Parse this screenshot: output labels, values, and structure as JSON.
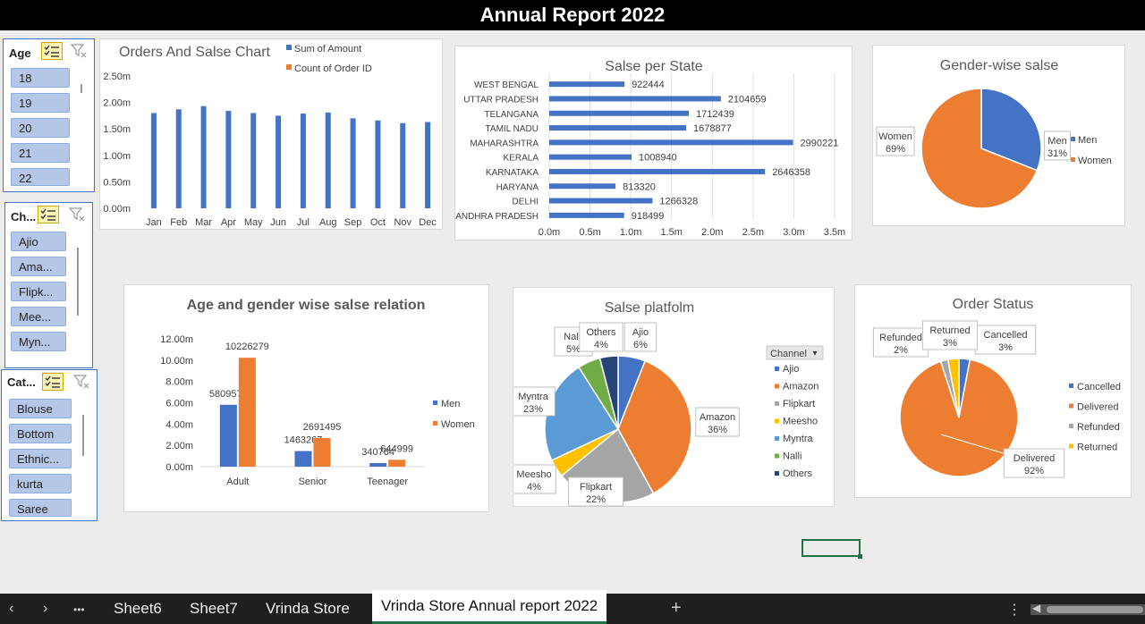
{
  "title": "Annual Report 2022",
  "slicers": {
    "age": {
      "header": "Age",
      "items": [
        "18",
        "19",
        "20",
        "21",
        "22"
      ]
    },
    "channel": {
      "header": "Ch...",
      "items": [
        "Ajio",
        "Ama...",
        "Flipk...",
        "Mee...",
        "Myn..."
      ]
    },
    "category": {
      "header": "Cat...",
      "items": [
        "Blouse",
        "Bottom",
        "Ethnic...",
        "kurta",
        "Saree"
      ]
    }
  },
  "tabs": {
    "more": "•••",
    "items": [
      "Sheet6",
      "Sheet7",
      "Vrinda Store",
      "Vrinda Store Annual report 2022"
    ],
    "add": "+",
    "options": "⋮"
  },
  "chart_data": [
    {
      "type": "bar",
      "title": "Orders And Salse Chart",
      "categories": [
        "Jan",
        "Feb",
        "Mar",
        "Apr",
        "May",
        "Jun",
        "Jul",
        "Aug",
        "Sep",
        "Oct",
        "Nov",
        "Dec"
      ],
      "series": [
        {
          "name": "Sum of Amount",
          "values": [
            1.8,
            1.87,
            1.93,
            1.84,
            1.8,
            1.75,
            1.79,
            1.81,
            1.7,
            1.66,
            1.61,
            1.63
          ],
          "color": "#4472c4"
        },
        {
          "name": "Count of Order ID",
          "values": [
            0,
            0,
            0,
            0,
            0,
            0,
            0,
            0,
            0,
            0,
            0,
            0
          ],
          "color": "#ed7d31"
        }
      ],
      "yticks": [
        "0.00m",
        "0.50m",
        "1.00m",
        "1.50m",
        "2.00m",
        "2.50m"
      ],
      "ylim": [
        0,
        2.5
      ],
      "legend": "top-right"
    },
    {
      "type": "bar",
      "orientation": "horizontal",
      "title": "Salse per State",
      "categories": [
        "WEST BENGAL",
        "UTTAR PRADESH",
        "TELANGANA",
        "TAMIL NADU",
        "MAHARASHTRA",
        "KERALA",
        "KARNATAKA",
        "HARYANA",
        "DELHI",
        "ANDHRA PRADESH"
      ],
      "values": [
        922444,
        2104659,
        1712439,
        1678877,
        2990221,
        1008940,
        2646358,
        813320,
        1266328,
        918499
      ],
      "xticks": [
        "0.0m",
        "0.5m",
        "1.0m",
        "1.5m",
        "2.0m",
        "2.5m",
        "3.0m",
        "3.5m"
      ],
      "xlim": [
        0,
        3.5
      ],
      "color": "#4472c4",
      "grid": true
    },
    {
      "type": "pie",
      "title": "Gender-wise salse",
      "labels": [
        "Men",
        "Women"
      ],
      "values": [
        31,
        69
      ],
      "colors": [
        "#4472c4",
        "#ed7d31"
      ],
      "data_labels": [
        {
          "name": "Men",
          "value": "31%"
        },
        {
          "name": "Women",
          "value": "69%"
        }
      ],
      "legend": "right"
    },
    {
      "type": "bar",
      "title": "Age and gender wise salse relation",
      "categories": [
        "Adult",
        "Senior",
        "Teenager"
      ],
      "series": [
        {
          "name": "Men",
          "values": [
            5809573,
            1463267,
            340764
          ],
          "labels": [
            "5809573",
            "1463267",
            "340764"
          ],
          "color": "#4472c4"
        },
        {
          "name": "Women",
          "values": [
            10226279,
            2691495,
            644999
          ],
          "labels": [
            "10226279",
            "2691495",
            "644999"
          ],
          "color": "#ed7d31"
        }
      ],
      "yticks": [
        "0.00m",
        "2.00m",
        "4.00m",
        "6.00m",
        "8.00m",
        "10.00m",
        "12.00m"
      ],
      "ylim": [
        0,
        12000000
      ],
      "legend": "right"
    },
    {
      "type": "pie",
      "title": "Salse platfolm",
      "labels": [
        "Ajio",
        "Amazon",
        "Flipkart",
        "Meesho",
        "Myntra",
        "Nalli",
        "Others"
      ],
      "values": [
        6,
        36,
        22,
        4,
        23,
        5,
        4
      ],
      "colors": [
        "#4472c4",
        "#ed7d31",
        "#a5a5a5",
        "#ffc000",
        "#5b9bd5",
        "#70ad47",
        "#264478"
      ],
      "data_labels": [
        {
          "name": "Ajio",
          "value": "6%"
        },
        {
          "name": "Amazon",
          "value": "36%"
        },
        {
          "name": "Flipkart",
          "value": "22%"
        },
        {
          "name": "Meesho",
          "value": "4%"
        },
        {
          "name": "Myntra",
          "value": "23%"
        },
        {
          "name": "Nalli",
          "value": "5%"
        },
        {
          "name": "Others",
          "value": "4%"
        }
      ],
      "legend_title": "Channel",
      "legend": "right"
    },
    {
      "type": "pie",
      "title": "Order Status",
      "labels": [
        "Cancelled",
        "Delivered",
        "Refunded",
        "Returned"
      ],
      "values": [
        3,
        92,
        2,
        3
      ],
      "colors": [
        "#4472c4",
        "#ed7d31",
        "#a5a5a5",
        "#ffc000"
      ],
      "data_labels": [
        {
          "name": "Cancelled",
          "value": "3%"
        },
        {
          "name": "Delivered",
          "value": "92%"
        },
        {
          "name": "Refunded",
          "value": "2%"
        },
        {
          "name": "Returned",
          "value": "3%"
        }
      ],
      "legend": "right"
    }
  ]
}
